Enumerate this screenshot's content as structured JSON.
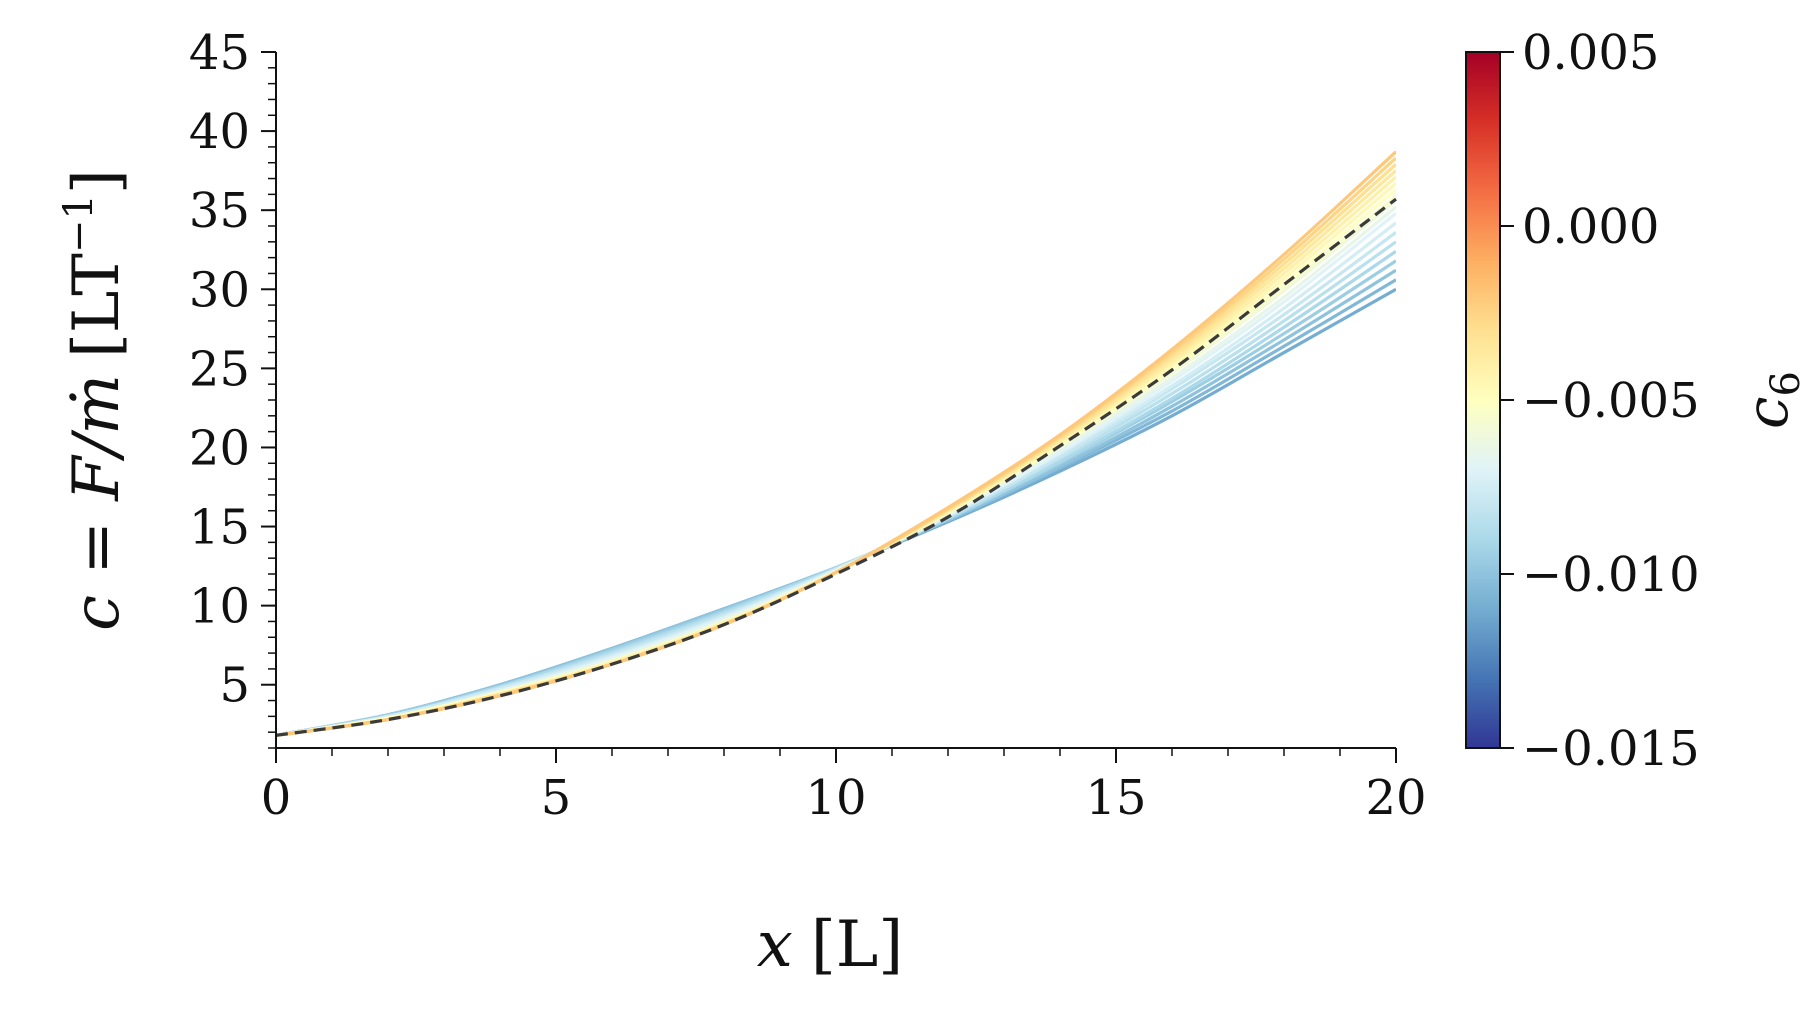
{
  "chart_data": {
    "type": "line",
    "x_axis": {
      "label_var": "x",
      "label_unit": "[L]",
      "range": [
        0,
        20
      ],
      "major_ticks": [
        0,
        5,
        10,
        15,
        20
      ],
      "tick_labels": [
        "0",
        "5",
        "10",
        "15",
        "20"
      ],
      "minor_step": 1
    },
    "y_axis": {
      "label_main": "c = F/ṁ",
      "label_unit_open": "[LT",
      "label_unit_exp": "−1",
      "label_unit_close": "]",
      "range": [
        1,
        45
      ],
      "major_ticks": [
        5,
        10,
        15,
        20,
        25,
        30,
        35,
        40,
        45
      ],
      "tick_labels": [
        "5",
        "10",
        "15",
        "20",
        "25",
        "30",
        "35",
        "40",
        "45"
      ],
      "minor_step": 1
    },
    "colorbar": {
      "label_var": "c",
      "label_sub": "6",
      "range": [
        -0.015,
        0.005
      ],
      "ticks": [
        0.005,
        0.0,
        -0.005,
        -0.01,
        -0.015
      ],
      "tick_labels": [
        "0.005",
        "0.000",
        "−0.005",
        "−0.010",
        "−0.015"
      ],
      "colormap": "RdYlBu_r",
      "stops": [
        "#313695",
        "#4575b4",
        "#74add1",
        "#abd9e9",
        "#e0f3f8",
        "#ffffbf",
        "#fee090",
        "#fdae61",
        "#f46d43",
        "#d73027",
        "#a50026"
      ]
    },
    "series": [
      {
        "c6": -0.011,
        "x": [
          0,
          2,
          4,
          6,
          8,
          10,
          12,
          14,
          16,
          18,
          20
        ],
        "y": [
          1.8,
          3.1,
          5.0,
          7.3,
          9.8,
          12.4,
          15.3,
          18.5,
          22.0,
          26.0,
          30.0
        ]
      },
      {
        "c6": -0.0105,
        "x": [
          0,
          2,
          4,
          6,
          8,
          10,
          12,
          14,
          16,
          18,
          20
        ],
        "y": [
          1.8,
          3.1,
          5.0,
          7.3,
          9.8,
          12.4,
          15.4,
          18.7,
          22.3,
          26.4,
          30.6
        ]
      },
      {
        "c6": -0.01,
        "x": [
          0,
          2,
          4,
          6,
          8,
          10,
          12,
          14,
          16,
          18,
          20
        ],
        "y": [
          1.8,
          3.1,
          5.0,
          7.3,
          9.8,
          12.4,
          15.4,
          18.8,
          22.6,
          26.8,
          31.2
        ]
      },
      {
        "c6": -0.0095,
        "x": [
          0,
          2,
          4,
          6,
          8,
          10,
          12,
          14,
          16,
          18,
          20
        ],
        "y": [
          1.8,
          3.1,
          4.9,
          7.2,
          9.7,
          12.4,
          15.5,
          19.0,
          22.9,
          27.2,
          31.8
        ]
      },
      {
        "c6": -0.009,
        "x": [
          0,
          2,
          4,
          6,
          8,
          10,
          12,
          14,
          16,
          18,
          20
        ],
        "y": [
          1.8,
          3.0,
          4.9,
          7.1,
          9.6,
          12.4,
          15.5,
          19.1,
          23.1,
          27.6,
          32.4
        ]
      },
      {
        "c6": -0.0085,
        "x": [
          0,
          2,
          4,
          6,
          8,
          10,
          12,
          14,
          16,
          18,
          20
        ],
        "y": [
          1.8,
          3.0,
          4.8,
          7.0,
          9.5,
          12.3,
          15.6,
          19.3,
          23.4,
          28.0,
          33.0
        ]
      },
      {
        "c6": -0.008,
        "x": [
          0,
          2,
          4,
          6,
          8,
          10,
          12,
          14,
          16,
          18,
          20
        ],
        "y": [
          1.8,
          3.0,
          4.8,
          6.9,
          9.4,
          12.3,
          15.6,
          19.4,
          23.7,
          28.4,
          33.6
        ]
      },
      {
        "c6": -0.0075,
        "x": [
          0,
          2,
          4,
          6,
          8,
          10,
          12,
          14,
          16,
          18,
          20
        ],
        "y": [
          1.8,
          3.0,
          4.7,
          6.8,
          9.3,
          12.3,
          15.7,
          19.6,
          23.9,
          28.8,
          34.2
        ]
      },
      {
        "c6": -0.007,
        "x": [
          0,
          2,
          4,
          6,
          8,
          10,
          12,
          14,
          16,
          18,
          20
        ],
        "y": [
          1.8,
          2.9,
          4.6,
          6.7,
          9.2,
          12.2,
          15.7,
          19.7,
          24.2,
          29.2,
          34.8
        ]
      },
      {
        "c6": -0.0065,
        "x": [
          0,
          2,
          4,
          6,
          8,
          10,
          12,
          14,
          16,
          18,
          20
        ],
        "y": [
          1.8,
          2.9,
          4.6,
          6.6,
          9.1,
          12.2,
          15.8,
          19.9,
          24.4,
          29.5,
          35.2
        ]
      },
      {
        "c6": -0.006,
        "x": [
          0,
          2,
          4,
          6,
          8,
          10,
          12,
          14,
          16,
          18,
          20
        ],
        "y": [
          1.8,
          2.9,
          4.5,
          6.5,
          9.0,
          12.2,
          15.8,
          20.0,
          24.7,
          29.9,
          35.6
        ]
      },
      {
        "c6": -0.0055,
        "x": [
          0,
          2,
          4,
          6,
          8,
          10,
          12,
          14,
          16,
          18,
          20
        ],
        "y": [
          1.8,
          2.9,
          4.5,
          6.5,
          9.0,
          12.1,
          15.9,
          20.1,
          24.8,
          30.1,
          35.9
        ]
      },
      {
        "c6": -0.005,
        "x": [
          0,
          2,
          4,
          6,
          8,
          10,
          12,
          14,
          16,
          18,
          20
        ],
        "y": [
          1.8,
          2.9,
          4.5,
          6.4,
          8.9,
          12.1,
          15.9,
          20.2,
          25.0,
          30.4,
          36.3
        ]
      },
      {
        "c6": -0.0045,
        "x": [
          0,
          2,
          4,
          6,
          8,
          10,
          12,
          14,
          16,
          18,
          20
        ],
        "y": [
          1.8,
          2.8,
          4.4,
          6.4,
          8.9,
          12.1,
          15.9,
          20.3,
          25.2,
          30.7,
          36.7
        ]
      },
      {
        "c6": -0.004,
        "x": [
          0,
          2,
          4,
          6,
          8,
          10,
          12,
          14,
          16,
          18,
          20
        ],
        "y": [
          1.8,
          2.8,
          4.4,
          6.4,
          8.9,
          12.1,
          16.0,
          20.4,
          25.4,
          31.0,
          37.1
        ]
      },
      {
        "c6": -0.0035,
        "x": [
          0,
          2,
          4,
          6,
          8,
          10,
          12,
          14,
          16,
          18,
          20
        ],
        "y": [
          1.8,
          2.8,
          4.4,
          6.3,
          8.8,
          12.1,
          16.0,
          20.5,
          25.6,
          31.3,
          37.5
        ]
      },
      {
        "c6": -0.003,
        "x": [
          0,
          2,
          4,
          6,
          8,
          10,
          12,
          14,
          16,
          18,
          20
        ],
        "y": [
          1.8,
          2.8,
          4.4,
          6.3,
          8.8,
          12.1,
          16.1,
          20.6,
          25.8,
          31.6,
          37.9
        ]
      },
      {
        "c6": -0.0025,
        "x": [
          0,
          2,
          4,
          6,
          8,
          10,
          12,
          14,
          16,
          18,
          20
        ],
        "y": [
          1.8,
          2.8,
          4.3,
          6.3,
          8.8,
          12.1,
          16.1,
          20.7,
          26.0,
          31.9,
          38.3
        ]
      },
      {
        "c6": -0.002,
        "x": [
          0,
          2,
          4,
          6,
          8,
          10,
          12,
          14,
          16,
          18,
          20
        ],
        "y": [
          1.8,
          2.8,
          4.3,
          6.3,
          8.8,
          12.1,
          16.2,
          20.8,
          26.2,
          32.2,
          38.7
        ]
      }
    ],
    "reference_series": {
      "style": "dashed",
      "color": "#3a3a3a",
      "x": [
        0,
        2,
        4,
        6,
        8,
        10,
        12,
        14,
        16,
        18,
        20
      ],
      "y": [
        1.8,
        2.8,
        4.3,
        6.3,
        8.8,
        12.0,
        15.6,
        20.1,
        24.9,
        30.3,
        35.7
      ]
    }
  }
}
